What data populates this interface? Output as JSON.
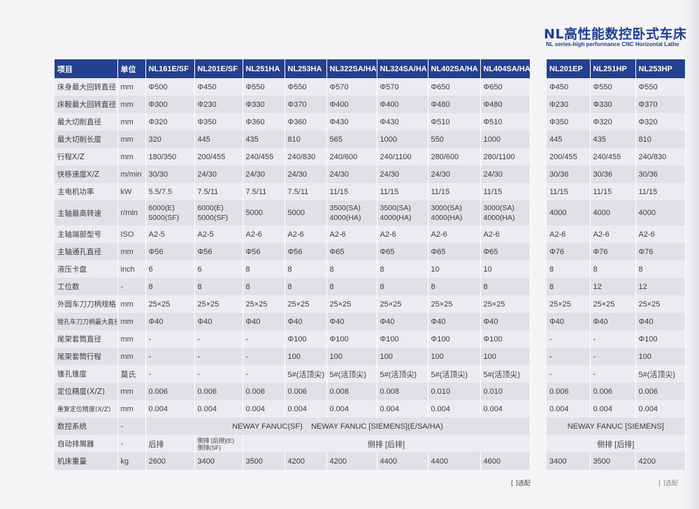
{
  "page_title_cn": "NL高性能数控卧式车床",
  "page_title_en": "NL series-high performance CNC Horizontal Lathe",
  "main_table": {
    "headers": [
      "项目",
      "单位",
      "NL161E/SF",
      "NL201E/SF",
      "NL251HA",
      "NL253HA",
      "NL322SA/HA",
      "NL324SA/HA",
      "NL402SA/HA",
      "NL404SA/HA"
    ],
    "rows": [
      {
        "label": "床身最大回转直径",
        "unit": "mm",
        "cells": [
          "Φ500",
          "Φ450",
          "Φ550",
          "Φ550",
          "Φ570",
          "Φ570",
          "Φ650",
          "Φ650"
        ]
      },
      {
        "label": "床鞍最大回转直径",
        "unit": "mm",
        "cells": [
          "Φ300",
          "Φ230",
          "Φ330",
          "Φ370",
          "Φ400",
          "Φ400",
          "Φ480",
          "Φ480"
        ]
      },
      {
        "label": "最大切削直径",
        "unit": "mm",
        "cells": [
          "Φ320",
          "Φ350",
          "Φ360",
          "Φ360",
          "Φ430",
          "Φ430",
          "Φ510",
          "Φ510"
        ]
      },
      {
        "label": "最大切削长度",
        "unit": "mm",
        "cells": [
          "320",
          "445",
          "435",
          "810",
          "565",
          "1000",
          "550",
          "1000"
        ]
      },
      {
        "label": "行程X/Z",
        "unit": "mm",
        "cells": [
          "180/350",
          "200/455",
          "240/455",
          "240/830",
          "240/600",
          "240/1100",
          "280/600",
          "280/1100"
        ]
      },
      {
        "label": "快移速度X/Z",
        "unit": "m/min",
        "cells": [
          "30/30",
          "24/30",
          "24/30",
          "24/30",
          "24/30",
          "24/30",
          "24/30",
          "24/30"
        ]
      },
      {
        "label": "主电机功率",
        "unit": "kW",
        "cells": [
          "5.5/7.5",
          "7.5/11",
          "7.5/11",
          "7.5/11",
          "11/15",
          "11/15",
          "11/15",
          "11/15"
        ]
      },
      {
        "label": "主轴最高转速",
        "unit": "r/min",
        "cells": [
          "6000(E)|5000(SF)",
          "6000(E)|5000(SF)",
          "5000",
          "5000",
          "3500(SA)|4000(HA)",
          "3500(SA)|4000(HA)",
          "3000(SA)|4000(HA)",
          "3000(SA)|4000(HA)"
        ]
      },
      {
        "label": "主轴端部型号",
        "unit": "ISO",
        "cells": [
          "A2-5",
          "A2-5",
          "A2-6",
          "A2-6",
          "A2-6",
          "A2-6",
          "A2-6",
          "A2-6"
        ]
      },
      {
        "label": "主轴通孔直径",
        "unit": "mm",
        "cells": [
          "Φ56",
          "Φ56",
          "Φ56",
          "Φ56",
          "Φ65",
          "Φ65",
          "Φ65",
          "Φ65"
        ]
      },
      {
        "label": "液压卡盘",
        "unit": "inch",
        "cells": [
          "6",
          "6",
          "8",
          "8",
          "8",
          "8",
          "10",
          "10"
        ]
      },
      {
        "label": "工位数",
        "unit": "-",
        "cells": [
          "8",
          "8",
          "8",
          "8",
          "8",
          "8",
          "8",
          "8"
        ]
      },
      {
        "label": "外圆车刀刀柄规格",
        "unit": "mm",
        "cells": [
          "25×25",
          "25×25",
          "25×25",
          "25×25",
          "25×25",
          "25×25",
          "25×25",
          "25×25"
        ]
      },
      {
        "label": "镗孔车刀刀柄最大直径",
        "unit": "mm",
        "small": true,
        "cells": [
          "Φ40",
          "Φ40",
          "Φ40",
          "Φ40",
          "Φ40",
          "Φ40",
          "Φ40",
          "Φ40"
        ]
      },
      {
        "label": "尾架套筒直径",
        "unit": "mm",
        "cells": [
          "-",
          "-",
          "-",
          "Φ100",
          "Φ100",
          "Φ100",
          "Φ100",
          "Φ100"
        ]
      },
      {
        "label": "尾架套筒行程",
        "unit": "mm",
        "cells": [
          "-",
          "-",
          "-",
          "100",
          "100",
          "100",
          "100",
          "100"
        ]
      },
      {
        "label": "锥孔锥度",
        "unit": "莫氏",
        "cells": [
          "-",
          "-",
          "-",
          "5#(活顶尖)",
          "5#(活顶尖)",
          "5#(活顶尖)",
          "5#(活顶尖)",
          "5#(活顶尖)"
        ]
      },
      {
        "label": "定位精度(X/Z)",
        "unit": "mm",
        "cells": [
          "0.006",
          "0.006",
          "0.006",
          "0.006",
          "0.008",
          "0.008",
          "0.010",
          "0.010"
        ]
      },
      {
        "label": "重复定位精度(X/Z)",
        "unit": "mm",
        "small": true,
        "cells": [
          "0.004",
          "0.004",
          "0.004",
          "0.004",
          "0.004",
          "0.004",
          "0.004",
          "0.004"
        ]
      }
    ],
    "control_row": {
      "label": "数控系统",
      "unit": "-",
      "value": "NEWAY FANUC(SF)    NEWAY FANUC [SIEMENS](E/SA/HA)"
    },
    "chip_row": {
      "label": "自动排屑器",
      "unit": "-",
      "c1": "后排",
      "c2": "侧排 [后排](E)|侧排(SF)",
      "rest": "侧排 [后排]"
    },
    "weight_row": {
      "label": "机床重量",
      "unit": "kg",
      "cells": [
        "2600",
        "3400",
        "3500",
        "4200",
        "4200",
        "4400",
        "4400",
        "4600"
      ]
    }
  },
  "side_table": {
    "headers": [
      "NL201EP",
      "NL251HP",
      "NL253HP"
    ],
    "rows": [
      [
        "Φ450",
        "Φ550",
        "Φ550"
      ],
      [
        "Φ230",
        "Φ330",
        "Φ370"
      ],
      [
        "Φ350",
        "Φ320",
        "Φ320"
      ],
      [
        "445",
        "435",
        "810"
      ],
      [
        "200/455",
        "240/455",
        "240/830"
      ],
      [
        "30/36",
        "30/36",
        "30/36"
      ],
      [
        "11/15",
        "11/15",
        "11/15"
      ],
      [
        "4000",
        "4000",
        "4000"
      ],
      [
        "A2-6",
        "A2-6",
        "A2-6"
      ],
      [
        "Φ76",
        "Φ76",
        "Φ76"
      ],
      [
        "8",
        "8",
        "8"
      ],
      [
        "8",
        "12",
        "12"
      ],
      [
        "25×25",
        "25×25",
        "25×25"
      ],
      [
        "Φ40",
        "Φ40",
        "Φ40"
      ],
      [
        "-",
        "-",
        "Φ100"
      ],
      [
        "-",
        "-",
        "100"
      ],
      [
        "-",
        "-",
        "5#(活顶尖)"
      ],
      [
        "0.006",
        "0.006",
        "0.006"
      ],
      [
        "0.004",
        "0.004",
        "0.004"
      ]
    ],
    "control_value": "NEWAY FANUC [SIEMENS]",
    "chip_value": "侧排 [后排]",
    "weight_cells": [
      "3400",
      "3500",
      "4200"
    ]
  },
  "footnote": "[ ]选配",
  "footnote_right": "[ ]选配"
}
